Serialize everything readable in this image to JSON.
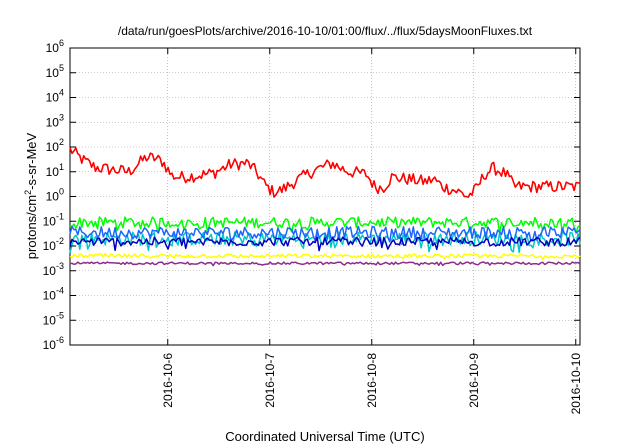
{
  "chart_data": {
    "type": "line",
    "title": "/data/run/goesPlots/archive/2016-10-10/01:00/flux/../flux/5daysMoonFluxes.txt",
    "xlabel": "Coordinated Universal Time (UTC)",
    "ylabel": "protons/cm2-s-sr-MeV",
    "ylabel_base": "protons/cm",
    "ylabel_sup": "2",
    "ylabel_rest": "-s-sr-MeV",
    "y_scale": "log",
    "ylim": [
      1e-06,
      1000000.0
    ],
    "y_ticks": [
      {
        "value": 1e-06,
        "base": "10",
        "exp": "-6"
      },
      {
        "value": 1e-05,
        "base": "10",
        "exp": "-5"
      },
      {
        "value": 0.0001,
        "base": "10",
        "exp": "-4"
      },
      {
        "value": 0.001,
        "base": "10",
        "exp": "-3"
      },
      {
        "value": 0.01,
        "base": "10",
        "exp": "-2"
      },
      {
        "value": 0.1,
        "base": "10",
        "exp": "-1"
      },
      {
        "value": 1,
        "base": "10",
        "exp": "0"
      },
      {
        "value": 10,
        "base": "10",
        "exp": "1"
      },
      {
        "value": 100,
        "base": "10",
        "exp": "2"
      },
      {
        "value": 1000,
        "base": "10",
        "exp": "3"
      },
      {
        "value": 10000,
        "base": "10",
        "exp": "4"
      },
      {
        "value": 100000,
        "base": "10",
        "exp": "5"
      },
      {
        "value": 1000000,
        "base": "10",
        "exp": "6"
      }
    ],
    "xlim": [
      "2016-10-05T01:00",
      "2016-10-10T01:00"
    ],
    "x_ticks": [
      "2016-10-6",
      "2016-10-7",
      "2016-10-8",
      "2016-10-9",
      "2016-10-10"
    ],
    "grid": true,
    "legend": "none",
    "series": [
      {
        "color": "#ff0000",
        "level": 10,
        "spread": 0.25,
        "anchors": [
          [
            0,
            80
          ],
          [
            0.03,
            30
          ],
          [
            0.06,
            15
          ],
          [
            0.1,
            12
          ],
          [
            0.14,
            10
          ],
          [
            0.16,
            20
          ],
          [
            0.18,
            38
          ],
          [
            0.2,
            35
          ],
          [
            0.22,
            25
          ],
          [
            0.24,
            7
          ],
          [
            0.26,
            6
          ],
          [
            0.3,
            7
          ],
          [
            0.34,
            9
          ],
          [
            0.38,
            20
          ],
          [
            0.42,
            22
          ],
          [
            0.44,
            10
          ],
          [
            0.46,
            3
          ],
          [
            0.48,
            1.5
          ],
          [
            0.5,
            1.8
          ],
          [
            0.54,
            5
          ],
          [
            0.58,
            12
          ],
          [
            0.62,
            22
          ],
          [
            0.64,
            14
          ],
          [
            0.66,
            10
          ],
          [
            0.7,
            8
          ],
          [
            0.72,
            2.5
          ],
          [
            0.74,
            2.2
          ],
          [
            0.76,
            6
          ],
          [
            0.8,
            5
          ],
          [
            0.84,
            4
          ],
          [
            0.86,
            5
          ],
          [
            0.88,
            2.5
          ],
          [
            0.9,
            2
          ],
          [
            0.92,
            1.5
          ],
          [
            0.94,
            1.0
          ],
          [
            0.96,
            2
          ],
          [
            0.98,
            8
          ],
          [
            1.0,
            14
          ],
          [
            1.03,
            8
          ],
          [
            1.05,
            2.5
          ]
        ]
      },
      {
        "color": "#00ff00",
        "level": 0.1,
        "spread": 0.22,
        "anchors": [
          [
            0,
            0.09
          ],
          [
            1.05,
            0.09
          ]
        ]
      },
      {
        "color": "#00c8c8",
        "level": 0.02,
        "spread": 0.28,
        "anchors": [
          [
            0,
            0.02
          ],
          [
            1.05,
            0.02
          ]
        ]
      },
      {
        "color": "#1e64ff",
        "level": 0.035,
        "spread": 0.25,
        "anchors": [
          [
            0,
            0.035
          ],
          [
            1.05,
            0.035
          ]
        ]
      },
      {
        "color": "#0000c0",
        "level": 0.015,
        "spread": 0.18,
        "anchors": [
          [
            0,
            0.015
          ],
          [
            1.05,
            0.015
          ]
        ]
      },
      {
        "color": "#ffff00",
        "level": 0.004,
        "spread": 0.08,
        "anchors": [
          [
            0,
            0.004
          ],
          [
            1.05,
            0.004
          ]
        ]
      },
      {
        "color": "#8b2d8b",
        "level": 0.002,
        "spread": 0.05,
        "anchors": [
          [
            0,
            0.002
          ],
          [
            1.05,
            0.002
          ]
        ]
      }
    ]
  }
}
